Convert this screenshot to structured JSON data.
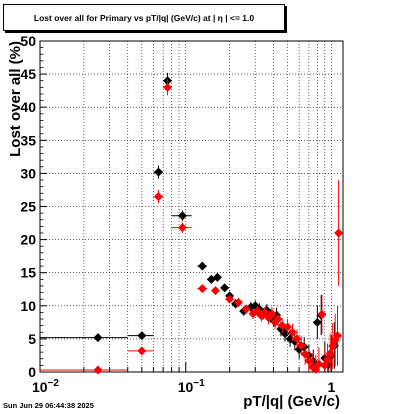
{
  "chart_data": {
    "type": "scatter",
    "title": "Lost over all for Primary vs pT/|q| (GeV/c) at |  η  | <= 1.0",
    "xlabel": "pT/|q| (GeV/c)",
    "ylabel": "Lost over all (%)",
    "x_scale": "log",
    "xlim": [
      0.01,
      1.2
    ],
    "ylim": [
      0,
      50
    ],
    "grid": true,
    "y_ticks": [
      0,
      5,
      10,
      15,
      20,
      25,
      30,
      35,
      40,
      45,
      50
    ],
    "x_tick_labels": [
      {
        "value": 0.01,
        "label": "10",
        "exp": "−2"
      },
      {
        "value": 0.1,
        "label": "10",
        "exp": "−1"
      },
      {
        "value": 1,
        "label": "1",
        "exp": ""
      }
    ],
    "series": [
      {
        "color": "#000000",
        "points": [
          {
            "x": 0.025,
            "y": 5.2,
            "xlo": 0.01,
            "xhi": 0.04,
            "ey": 0.6
          },
          {
            "x": 0.05,
            "y": 5.5,
            "xlo": 0.04,
            "xhi": 0.06,
            "ey": 0.6
          },
          {
            "x": 0.065,
            "y": 30.2,
            "xlo": 0.06,
            "xhi": 0.07,
            "ey": 1.0
          },
          {
            "x": 0.075,
            "y": 44.0,
            "xlo": 0.07,
            "xhi": 0.08,
            "ey": 1.2
          },
          {
            "x": 0.095,
            "y": 23.6,
            "xlo": 0.08,
            "xhi": 0.11,
            "ey": 0.8
          },
          {
            "x": 0.13,
            "y": 16.0,
            "xlo": 0.12,
            "xhi": 0.14,
            "ey": 0.6
          },
          {
            "x": 0.15,
            "y": 14.0,
            "xlo": 0.14,
            "xhi": 0.16,
            "ey": 0.6
          },
          {
            "x": 0.165,
            "y": 14.3,
            "xlo": 0.155,
            "xhi": 0.175,
            "ey": 0.6
          },
          {
            "x": 0.185,
            "y": 12.7,
            "xlo": 0.175,
            "xhi": 0.195,
            "ey": 0.6
          },
          {
            "x": 0.2,
            "y": 11.5,
            "xlo": 0.19,
            "xhi": 0.21,
            "ey": 0.6
          },
          {
            "x": 0.22,
            "y": 10.3,
            "xlo": 0.21,
            "xhi": 0.23,
            "ey": 0.7
          },
          {
            "x": 0.25,
            "y": 9.2,
            "xlo": 0.24,
            "xhi": 0.26,
            "ey": 0.7
          },
          {
            "x": 0.28,
            "y": 9.8,
            "xlo": 0.27,
            "xhi": 0.29,
            "ey": 0.8
          },
          {
            "x": 0.3,
            "y": 10.0,
            "xlo": 0.29,
            "xhi": 0.31,
            "ey": 0.8
          },
          {
            "x": 0.32,
            "y": 9.5,
            "xlo": 0.31,
            "xhi": 0.33,
            "ey": 0.9
          },
          {
            "x": 0.34,
            "y": 8.8,
            "xlo": 0.33,
            "xhi": 0.35,
            "ey": 0.9
          },
          {
            "x": 0.36,
            "y": 9.3,
            "xlo": 0.35,
            "xhi": 0.37,
            "ey": 1.0
          },
          {
            "x": 0.38,
            "y": 8.5,
            "xlo": 0.37,
            "xhi": 0.39,
            "ey": 1.0
          },
          {
            "x": 0.4,
            "y": 7.8,
            "xlo": 0.39,
            "xhi": 0.41,
            "ey": 1.0
          },
          {
            "x": 0.42,
            "y": 8.6,
            "xlo": 0.41,
            "xhi": 0.43,
            "ey": 1.1
          },
          {
            "x": 0.45,
            "y": 6.5,
            "xlo": 0.44,
            "xhi": 0.46,
            "ey": 1.1
          },
          {
            "x": 0.48,
            "y": 5.8,
            "xlo": 0.47,
            "xhi": 0.49,
            "ey": 1.2
          },
          {
            "x": 0.52,
            "y": 5.0,
            "xlo": 0.51,
            "xhi": 0.53,
            "ey": 1.2
          },
          {
            "x": 0.56,
            "y": 4.6,
            "xlo": 0.55,
            "xhi": 0.57,
            "ey": 1.3
          },
          {
            "x": 0.6,
            "y": 3.4,
            "xlo": 0.59,
            "xhi": 0.61,
            "ey": 1.4
          },
          {
            "x": 0.65,
            "y": 3.8,
            "xlo": 0.64,
            "xhi": 0.66,
            "ey": 1.5
          },
          {
            "x": 0.7,
            "y": 2.5,
            "xlo": 0.69,
            "xhi": 0.71,
            "ey": 1.6
          },
          {
            "x": 0.75,
            "y": 1.6,
            "xlo": 0.74,
            "xhi": 0.76,
            "ey": 1.8
          },
          {
            "x": 0.8,
            "y": 7.5,
            "xlo": 0.79,
            "xhi": 0.81,
            "ey": 2.5
          },
          {
            "x": 0.85,
            "y": 8.6,
            "xlo": 0.84,
            "xhi": 0.86,
            "ey": 3.0
          },
          {
            "x": 0.9,
            "y": 2.1,
            "xlo": 0.89,
            "xhi": 0.91,
            "ey": 2.5
          },
          {
            "x": 0.95,
            "y": 1.1,
            "xlo": 0.94,
            "xhi": 0.96,
            "ey": 2.0
          },
          {
            "x": 1.0,
            "y": 2.5,
            "xlo": 0.99,
            "xhi": 1.01,
            "ey": 3.0
          },
          {
            "x": 1.05,
            "y": 4.0,
            "xlo": 1.04,
            "xhi": 1.06,
            "ey": 3.5
          }
        ]
      },
      {
        "color": "#ff0000",
        "points": [
          {
            "x": 0.025,
            "y": 0.3,
            "xlo": 0.01,
            "xhi": 0.04,
            "ey": 0.3
          },
          {
            "x": 0.05,
            "y": 3.2,
            "xlo": 0.04,
            "xhi": 0.06,
            "ey": 0.5
          },
          {
            "x": 0.065,
            "y": 26.5,
            "xlo": 0.06,
            "xhi": 0.07,
            "ey": 1.0
          },
          {
            "x": 0.075,
            "y": 43.0,
            "xlo": 0.07,
            "xhi": 0.08,
            "ey": 1.2
          },
          {
            "x": 0.095,
            "y": 21.8,
            "xlo": 0.08,
            "xhi": 0.11,
            "ey": 0.8
          },
          {
            "x": 0.13,
            "y": 12.6,
            "xlo": 0.12,
            "xhi": 0.14,
            "ey": 0.6
          },
          {
            "x": 0.16,
            "y": 12.3,
            "xlo": 0.15,
            "xhi": 0.17,
            "ey": 0.6
          },
          {
            "x": 0.2,
            "y": 11.0,
            "xlo": 0.19,
            "xhi": 0.21,
            "ey": 0.6
          },
          {
            "x": 0.23,
            "y": 10.5,
            "xlo": 0.22,
            "xhi": 0.24,
            "ey": 0.7
          },
          {
            "x": 0.26,
            "y": 9.5,
            "xlo": 0.25,
            "xhi": 0.27,
            "ey": 0.7
          },
          {
            "x": 0.29,
            "y": 8.8,
            "xlo": 0.28,
            "xhi": 0.3,
            "ey": 0.8
          },
          {
            "x": 0.31,
            "y": 9.2,
            "xlo": 0.3,
            "xhi": 0.32,
            "ey": 0.8
          },
          {
            "x": 0.33,
            "y": 8.5,
            "xlo": 0.32,
            "xhi": 0.34,
            "ey": 0.9
          },
          {
            "x": 0.35,
            "y": 9.0,
            "xlo": 0.34,
            "xhi": 0.36,
            "ey": 0.9
          },
          {
            "x": 0.37,
            "y": 8.2,
            "xlo": 0.36,
            "xhi": 0.38,
            "ey": 1.0
          },
          {
            "x": 0.39,
            "y": 8.8,
            "xlo": 0.38,
            "xhi": 0.4,
            "ey": 1.0
          },
          {
            "x": 0.41,
            "y": 7.5,
            "xlo": 0.4,
            "xhi": 0.42,
            "ey": 1.0
          },
          {
            "x": 0.43,
            "y": 8.0,
            "xlo": 0.42,
            "xhi": 0.44,
            "ey": 1.1
          },
          {
            "x": 0.46,
            "y": 7.0,
            "xlo": 0.45,
            "xhi": 0.47,
            "ey": 1.1
          },
          {
            "x": 0.5,
            "y": 6.8,
            "xlo": 0.49,
            "xhi": 0.51,
            "ey": 1.2
          },
          {
            "x": 0.54,
            "y": 6.0,
            "xlo": 0.53,
            "xhi": 0.55,
            "ey": 1.3
          },
          {
            "x": 0.58,
            "y": 5.0,
            "xlo": 0.57,
            "xhi": 0.59,
            "ey": 1.4
          },
          {
            "x": 0.62,
            "y": 4.0,
            "xlo": 0.61,
            "xhi": 0.63,
            "ey": 1.5
          },
          {
            "x": 0.66,
            "y": 2.7,
            "xlo": 0.65,
            "xhi": 0.67,
            "ey": 1.6
          },
          {
            "x": 0.7,
            "y": 1.7,
            "xlo": 0.69,
            "xhi": 0.71,
            "ey": 1.8
          },
          {
            "x": 0.74,
            "y": 0.8,
            "xlo": 0.73,
            "xhi": 0.75,
            "ey": 2.0
          },
          {
            "x": 0.78,
            "y": 0.4,
            "xlo": 0.77,
            "xhi": 0.79,
            "ey": 2.2
          },
          {
            "x": 0.82,
            "y": 1.2,
            "xlo": 0.81,
            "xhi": 0.83,
            "ey": 2.5
          },
          {
            "x": 0.86,
            "y": 8.7,
            "xlo": 0.85,
            "xhi": 0.87,
            "ey": 3.0
          },
          {
            "x": 0.9,
            "y": 1.0,
            "xlo": 0.89,
            "xhi": 0.91,
            "ey": 2.5
          },
          {
            "x": 0.94,
            "y": 1.8,
            "xlo": 0.93,
            "xhi": 0.95,
            "ey": 2.5
          },
          {
            "x": 0.98,
            "y": 2.8,
            "xlo": 0.97,
            "xhi": 0.99,
            "ey": 3.0
          },
          {
            "x": 1.02,
            "y": 3.9,
            "xlo": 1.01,
            "xhi": 1.03,
            "ey": 3.5
          },
          {
            "x": 1.06,
            "y": 4.8,
            "xlo": 1.05,
            "xhi": 1.07,
            "ey": 4.0
          },
          {
            "x": 1.1,
            "y": 5.5,
            "xlo": 1.09,
            "xhi": 1.11,
            "ey": 4.5
          },
          {
            "x": 1.12,
            "y": 21.0,
            "xlo": 1.11,
            "xhi": 1.13,
            "ey": 8.0
          }
        ]
      }
    ]
  },
  "footer": {
    "timestamp": "Sun Jun 29 06:44:38 2025"
  }
}
